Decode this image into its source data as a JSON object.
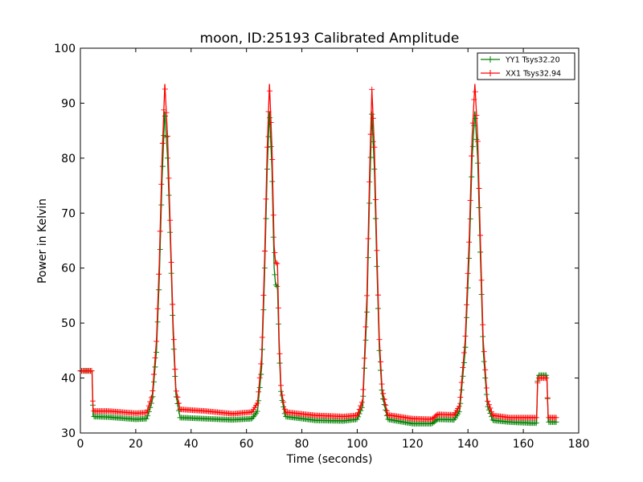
{
  "chart_data": {
    "type": "line",
    "title": "moon, ID:25193 Calibrated Amplitude",
    "xlabel": "Time (seconds)",
    "ylabel": "Power in Kelvin",
    "xlim": [
      0,
      180
    ],
    "ylim": [
      30,
      100
    ],
    "xticks": [
      0,
      20,
      40,
      60,
      80,
      100,
      120,
      140,
      160,
      180
    ],
    "yticks": [
      30,
      40,
      50,
      60,
      70,
      80,
      90,
      100
    ],
    "grid": false,
    "legend_position": "top-right",
    "series": [
      {
        "name": "YY1 Tsys32.20",
        "color": "#008000",
        "marker": "+",
        "points": [
          [
            0,
            41.3
          ],
          [
            4.2,
            41.3
          ],
          [
            4.6,
            33.0
          ],
          [
            10,
            32.9
          ],
          [
            20,
            32.5
          ],
          [
            24,
            32.6
          ],
          [
            26,
            36
          ],
          [
            27.5,
            45
          ],
          [
            28.5,
            58
          ],
          [
            29.5,
            76
          ],
          [
            30.5,
            88.5
          ],
          [
            31.5,
            80
          ],
          [
            32.5,
            65
          ],
          [
            33.5,
            48
          ],
          [
            34.5,
            37
          ],
          [
            36,
            32.8
          ],
          [
            45,
            32.6
          ],
          [
            55,
            32.4
          ],
          [
            62,
            32.6
          ],
          [
            64,
            34
          ],
          [
            65.5,
            42
          ],
          [
            66.5,
            58
          ],
          [
            67.5,
            78
          ],
          [
            68.3,
            88.5
          ],
          [
            69.2,
            78
          ],
          [
            70,
            60
          ],
          [
            70.5,
            57
          ],
          [
            71.2,
            56.6
          ],
          [
            71.8,
            45
          ],
          [
            72.5,
            37
          ],
          [
            74,
            33
          ],
          [
            85,
            32.3
          ],
          [
            95,
            32.2
          ],
          [
            100,
            32.5
          ],
          [
            102,
            35
          ],
          [
            103.5,
            52
          ],
          [
            104.5,
            74
          ],
          [
            105.3,
            88
          ],
          [
            106.2,
            78
          ],
          [
            107,
            62
          ],
          [
            108,
            45
          ],
          [
            109,
            37
          ],
          [
            111,
            32.5
          ],
          [
            120,
            31.7
          ],
          [
            127,
            31.7
          ],
          [
            129,
            32.5
          ],
          [
            135,
            32.4
          ],
          [
            137,
            34
          ],
          [
            139,
            45
          ],
          [
            140.5,
            63
          ],
          [
            141.5,
            80
          ],
          [
            142.5,
            88.5
          ],
          [
            143.5,
            80
          ],
          [
            144.5,
            62
          ],
          [
            145.5,
            45
          ],
          [
            147,
            35
          ],
          [
            149,
            32.3
          ],
          [
            155,
            32.0
          ],
          [
            163,
            31.8
          ],
          [
            164.8,
            31.8
          ],
          [
            165.2,
            40.5
          ],
          [
            168.5,
            40.5
          ],
          [
            169,
            32
          ],
          [
            172,
            32
          ]
        ]
      },
      {
        "name": "XX1 Tsys32.94",
        "color": "#ff0000",
        "marker": "+",
        "points": [
          [
            0,
            41.3
          ],
          [
            4.2,
            41.3
          ],
          [
            4.6,
            34.0
          ],
          [
            10,
            34.0
          ],
          [
            20,
            33.6
          ],
          [
            24,
            33.7
          ],
          [
            26,
            37
          ],
          [
            27.5,
            47
          ],
          [
            28.5,
            61
          ],
          [
            29.5,
            80
          ],
          [
            30.5,
            93.5
          ],
          [
            31.5,
            84
          ],
          [
            32.5,
            67
          ],
          [
            33.5,
            50
          ],
          [
            34.5,
            38
          ],
          [
            36,
            34.3
          ],
          [
            45,
            34.0
          ],
          [
            55,
            33.5
          ],
          [
            62,
            33.8
          ],
          [
            64,
            35.5
          ],
          [
            65.5,
            44
          ],
          [
            66.5,
            61
          ],
          [
            67.5,
            82
          ],
          [
            68.3,
            93.5
          ],
          [
            69.2,
            82
          ],
          [
            70,
            64
          ],
          [
            70.5,
            61
          ],
          [
            71.2,
            60.8
          ],
          [
            71.8,
            47
          ],
          [
            72.5,
            38
          ],
          [
            74,
            33.8
          ],
          [
            85,
            33.2
          ],
          [
            95,
            33.0
          ],
          [
            100,
            33.2
          ],
          [
            102,
            36
          ],
          [
            103.5,
            55
          ],
          [
            104.5,
            78
          ],
          [
            105.3,
            92.5
          ],
          [
            106.2,
            82
          ],
          [
            107,
            65
          ],
          [
            108,
            47
          ],
          [
            109,
            38
          ],
          [
            111,
            33.3
          ],
          [
            120,
            32.6
          ],
          [
            127,
            32.5
          ],
          [
            129,
            33.4
          ],
          [
            135,
            33.3
          ],
          [
            137,
            35
          ],
          [
            139,
            47
          ],
          [
            140.5,
            66
          ],
          [
            141.5,
            84
          ],
          [
            142.5,
            93.5
          ],
          [
            143.5,
            84
          ],
          [
            144.5,
            65
          ],
          [
            145.5,
            47
          ],
          [
            147,
            36
          ],
          [
            149,
            33.2
          ],
          [
            155,
            32.8
          ],
          [
            163,
            32.8
          ],
          [
            164.8,
            32.8
          ],
          [
            165.2,
            40.0
          ],
          [
            168.5,
            40.0
          ],
          [
            169,
            32.8
          ],
          [
            172,
            32.8
          ]
        ]
      }
    ]
  }
}
